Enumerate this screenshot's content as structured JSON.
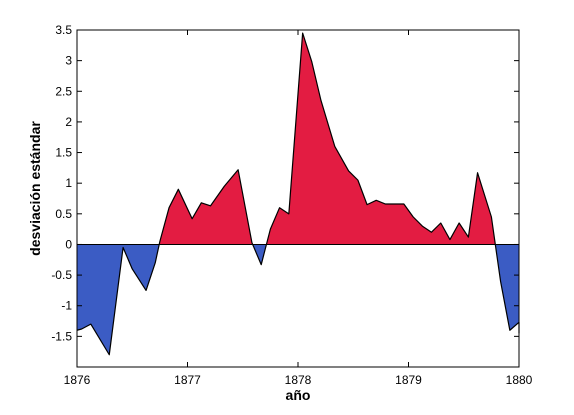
{
  "chart_data": {
    "type": "area",
    "xlabel": "año",
    "ylabel": "desviación estándar",
    "xlim": [
      1876,
      1880
    ],
    "ylim": [
      -2,
      3.5
    ],
    "x_ticks": [
      1876,
      1877,
      1878,
      1879,
      1880
    ],
    "x_tick_labels": [
      "1876",
      "1877",
      "1878",
      "1879",
      "1880"
    ],
    "y_ticks": [
      -1.5,
      -1,
      -0.5,
      0,
      0.5,
      1,
      1.5,
      2,
      2.5,
      3,
      3.5
    ],
    "y_tick_labels": [
      "-1.5",
      "-1",
      "-0.5",
      "0",
      "0.5",
      "1",
      "1.5",
      "2",
      "2.5",
      "3",
      "3.5"
    ],
    "grid": false,
    "colors": {
      "positive": "#e31c42",
      "negative": "#3b5cc4",
      "line": "#000000"
    },
    "series": [
      {
        "x": [
          1876.0,
          1876.042,
          1876.125,
          1876.292,
          1876.417,
          1876.5,
          1876.625,
          1876.708,
          1876.75,
          1876.833,
          1876.917,
          1877.042,
          1877.125,
          1877.208,
          1877.333,
          1877.458,
          1877.583,
          1877.667,
          1877.75,
          1877.833,
          1877.917,
          1878.042,
          1878.125,
          1878.208,
          1878.333,
          1878.458,
          1878.542,
          1878.625,
          1878.708,
          1878.792,
          1878.875,
          1878.958,
          1879.042,
          1879.125,
          1879.208,
          1879.292,
          1879.375,
          1879.458,
          1879.542,
          1879.625,
          1879.75,
          1879.833,
          1879.917,
          1880.0
        ],
        "values": [
          -1.4,
          -1.38,
          -1.3,
          -1.8,
          -0.05,
          -0.4,
          -0.75,
          -0.3,
          0.05,
          0.6,
          0.9,
          0.42,
          0.68,
          0.63,
          0.95,
          1.22,
          0.03,
          -0.33,
          0.25,
          0.6,
          0.5,
          3.45,
          2.98,
          2.35,
          1.6,
          1.2,
          1.05,
          0.65,
          0.72,
          0.66,
          0.66,
          0.66,
          0.45,
          0.3,
          0.2,
          0.35,
          0.08,
          0.35,
          0.12,
          1.17,
          0.45,
          -0.6,
          -1.4,
          -1.27
        ]
      },
      {
        "x": [
          1880.0,
          1880.0
        ],
        "values": [
          -1.27,
          -1.45
        ]
      }
    ]
  }
}
